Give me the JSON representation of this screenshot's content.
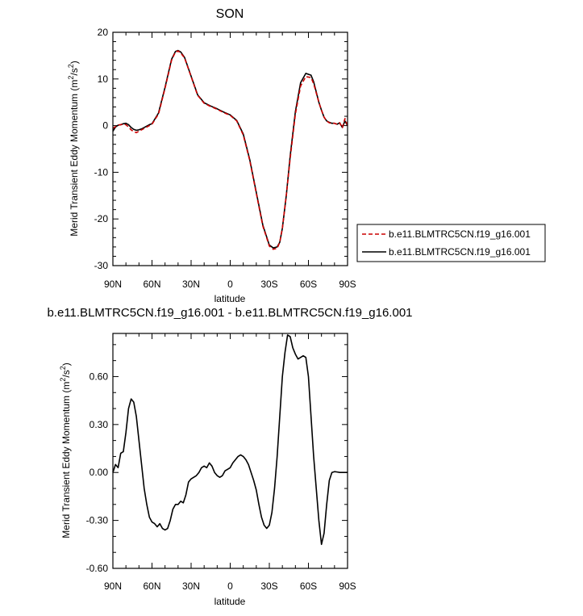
{
  "chart_data": [
    {
      "type": "line",
      "title": "SON",
      "xlabel": "latitude",
      "ylabel_pre": "Merid Transient Eddy Momentum (m",
      "ylabel_sup": "2",
      "ylabel_mid": "/s",
      "ylabel_sup2": "2",
      "ylabel_post": ")",
      "x_tick_labels": [
        "90N",
        "60N",
        "30N",
        "0",
        "30S",
        "60S",
        "90S"
      ],
      "y_tick_labels": [
        "20",
        "10",
        "0",
        "-10",
        "-20",
        "-30"
      ],
      "xlim": [
        90,
        -90
      ],
      "ylim": [
        -30,
        20
      ],
      "grid": false,
      "legend_position": "right-bottom",
      "series": [
        {
          "name": "b.e11.BLMTRC5CN.f19_g16.001",
          "color": "#cc0000",
          "style": "dashed",
          "x": [
            90,
            88,
            86,
            84,
            82,
            80,
            78,
            76,
            74,
            72,
            70,
            68,
            66,
            64,
            62,
            60,
            55,
            50,
            45,
            42,
            40,
            38,
            35,
            30,
            25,
            20,
            15,
            10,
            5,
            0,
            -5,
            -10,
            -15,
            -20,
            -25,
            -30,
            -33,
            -36,
            -38,
            -40,
            -43,
            -46,
            -50,
            -54,
            -58,
            -62,
            -64,
            -66,
            -68,
            -70,
            -72,
            -74,
            -76,
            -78,
            -80,
            -82,
            -84,
            -86,
            -88,
            -90
          ],
          "y": [
            -0.6,
            -0.2,
            0.1,
            0.2,
            0.3,
            0.2,
            -0.3,
            -0.9,
            -1.3,
            -1.5,
            -1.2,
            -0.9,
            -0.6,
            -0.3,
            0.0,
            0.3,
            2.5,
            8.0,
            14.0,
            15.8,
            16.0,
            15.6,
            14.5,
            10.5,
            6.5,
            4.8,
            4.1,
            3.5,
            2.8,
            2.2,
            1.0,
            -2.0,
            -7.5,
            -14.5,
            -21.5,
            -25.8,
            -26.5,
            -26.3,
            -25.0,
            -22.0,
            -15.0,
            -7.0,
            2.5,
            8.5,
            10.5,
            10.3,
            9.0,
            7.0,
            5.0,
            3.3,
            1.8,
            1.0,
            0.6,
            0.5,
            0.5,
            0.3,
            0.6,
            -0.5,
            1.5,
            0.0
          ]
        },
        {
          "name": "b.e11.BLMTRC5CN.f19_g16.001",
          "color": "#000000",
          "style": "solid",
          "x": [
            90,
            88,
            86,
            84,
            82,
            80,
            78,
            76,
            74,
            72,
            70,
            68,
            66,
            64,
            62,
            60,
            55,
            50,
            45,
            42,
            40,
            38,
            35,
            30,
            25,
            20,
            15,
            10,
            5,
            0,
            -5,
            -10,
            -15,
            -20,
            -25,
            -30,
            -33,
            -36,
            -38,
            -40,
            -43,
            -46,
            -50,
            -54,
            -58,
            -62,
            -64,
            -66,
            -68,
            -70,
            -72,
            -74,
            -76,
            -78,
            -80,
            -82,
            -84,
            -86,
            -88,
            -90
          ],
          "y": [
            -1.2,
            -0.3,
            0.1,
            0.2,
            0.4,
            0.5,
            0.2,
            -0.4,
            -0.8,
            -1.0,
            -0.9,
            -0.7,
            -0.4,
            -0.1,
            0.2,
            0.4,
            2.7,
            8.2,
            14.2,
            15.9,
            16.1,
            15.8,
            14.6,
            10.6,
            6.6,
            4.9,
            4.2,
            3.6,
            2.9,
            2.3,
            1.1,
            -1.8,
            -7.3,
            -14.3,
            -21.3,
            -25.6,
            -26.2,
            -26.0,
            -25.0,
            -22.0,
            -15.0,
            -6.5,
            3.0,
            9.2,
            11.2,
            10.8,
            9.4,
            7.2,
            5.0,
            3.3,
            1.8,
            1.0,
            0.7,
            0.5,
            0.5,
            0.3,
            0.6,
            -0.4,
            1.0,
            0.0
          ]
        }
      ]
    },
    {
      "type": "line",
      "title": "b.e11.BLMTRC5CN.f19_g16.001 - b.e11.BLMTRC5CN.f19_g16.001",
      "xlabel": "latitude",
      "ylabel_pre": "Merid Transient Eddy Momentum (m",
      "ylabel_sup": "2",
      "ylabel_mid": "/s",
      "ylabel_sup2": "2",
      "ylabel_post": ")",
      "x_tick_labels": [
        "90N",
        "60N",
        "30N",
        "0",
        "30S",
        "60S",
        "90S"
      ],
      "y_tick_labels": [
        "0.60",
        "0.30",
        "0.00",
        "-0.30",
        "-0.60"
      ],
      "xlim": [
        90,
        -90
      ],
      "ylim": [
        -0.6,
        0.87
      ],
      "grid": false,
      "series": [
        {
          "color": "#000000",
          "style": "solid",
          "x": [
            90,
            88,
            86,
            84,
            82,
            80,
            78,
            76,
            74,
            72,
            70,
            68,
            66,
            64,
            62,
            60,
            58,
            56,
            54,
            52,
            50,
            48,
            46,
            44,
            42,
            40,
            38,
            36,
            34,
            32,
            30,
            28,
            26,
            24,
            22,
            20,
            18,
            16,
            14,
            12,
            10,
            8,
            6,
            4,
            2,
            0,
            -2,
            -4,
            -6,
            -8,
            -10,
            -12,
            -14,
            -16,
            -18,
            -20,
            -22,
            -24,
            -26,
            -28,
            -30,
            -32,
            -34,
            -36,
            -38,
            -40,
            -42,
            -44,
            -46,
            -48,
            -50,
            -52,
            -54,
            -56,
            -58,
            -60,
            -62,
            -64,
            -66,
            -68,
            -70,
            -72,
            -74,
            -76,
            -78,
            -80,
            -82,
            -84,
            -86,
            -88,
            -90
          ],
          "y": [
            0.0,
            0.05,
            0.03,
            0.12,
            0.13,
            0.25,
            0.4,
            0.46,
            0.44,
            0.35,
            0.2,
            0.05,
            -0.1,
            -0.2,
            -0.28,
            -0.31,
            -0.32,
            -0.34,
            -0.32,
            -0.35,
            -0.36,
            -0.35,
            -0.3,
            -0.23,
            -0.2,
            -0.2,
            -0.18,
            -0.19,
            -0.14,
            -0.06,
            -0.04,
            -0.03,
            -0.02,
            0.0,
            0.03,
            0.04,
            0.03,
            0.06,
            0.04,
            0.0,
            -0.02,
            -0.03,
            -0.02,
            0.01,
            0.02,
            0.03,
            0.06,
            0.08,
            0.1,
            0.11,
            0.1,
            0.08,
            0.05,
            0.0,
            -0.05,
            -0.11,
            -0.2,
            -0.28,
            -0.33,
            -0.35,
            -0.33,
            -0.25,
            -0.1,
            0.1,
            0.35,
            0.6,
            0.75,
            0.86,
            0.85,
            0.78,
            0.74,
            0.71,
            0.72,
            0.73,
            0.72,
            0.6,
            0.35,
            0.1,
            -0.1,
            -0.3,
            -0.45,
            -0.38,
            -0.2,
            -0.05,
            0.0,
            0.005,
            0.003,
            0.0,
            0.0,
            0.0,
            0.0
          ]
        }
      ]
    }
  ]
}
